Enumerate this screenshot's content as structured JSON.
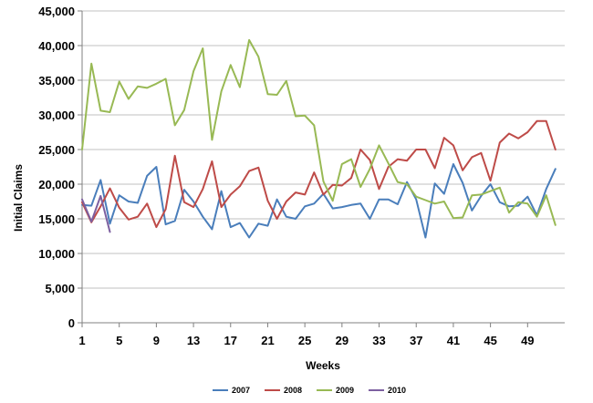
{
  "chart_data": {
    "type": "line",
    "title": "",
    "xlabel": "Weeks",
    "ylabel": "Initial Claims",
    "xlim": [
      1,
      53
    ],
    "ylim": [
      0,
      45000
    ],
    "x_ticks": [
      1,
      5,
      9,
      13,
      17,
      21,
      25,
      29,
      33,
      37,
      41,
      45,
      49
    ],
    "x_tick_labels": [
      "1",
      "5",
      "9",
      "13",
      "17",
      "21",
      "25",
      "29",
      "33",
      "37",
      "41",
      "45",
      "49"
    ],
    "y_ticks": [
      0,
      5000,
      10000,
      15000,
      20000,
      25000,
      30000,
      35000,
      40000,
      45000
    ],
    "y_tick_labels": [
      "0",
      "5,000",
      "10,000",
      "15,000",
      "20,000",
      "25,000",
      "30,000",
      "35,000",
      "40,000",
      "45,000"
    ],
    "grid": "horizontal",
    "legend_position": "bottom",
    "colors": {
      "2007": "#4a7ebb",
      "2008": "#be4b48",
      "2009": "#98b954",
      "2010": "#7d60a0",
      "grid": "#c0c0c0",
      "axis": "#808080"
    },
    "series": [
      {
        "name": "2007",
        "x": [
          1,
          2,
          3,
          4,
          5,
          6,
          7,
          8,
          9,
          10,
          11,
          12,
          13,
          14,
          15,
          16,
          17,
          18,
          19,
          20,
          21,
          22,
          23,
          24,
          25,
          26,
          27,
          28,
          29,
          30,
          31,
          32,
          33,
          34,
          35,
          36,
          37,
          38,
          39,
          40,
          41,
          42,
          43,
          44,
          45,
          46,
          47,
          48,
          49,
          50,
          51,
          52
        ],
        "values": [
          17000,
          16900,
          20600,
          14300,
          18400,
          17500,
          17300,
          21200,
          22500,
          14200,
          14700,
          19200,
          17500,
          15300,
          13500,
          19000,
          13800,
          14400,
          12300,
          14300,
          14000,
          17800,
          15300,
          15000,
          16800,
          17200,
          18600,
          16500,
          16700,
          17000,
          17200,
          15000,
          17800,
          17800,
          17100,
          20300,
          17800,
          12300,
          20100,
          18600,
          22900,
          20200,
          16200,
          18300,
          20000,
          17400,
          16800,
          16900,
          18200,
          15500,
          19300,
          22200
        ]
      },
      {
        "name": "2008",
        "x": [
          1,
          2,
          3,
          4,
          5,
          6,
          7,
          8,
          9,
          10,
          11,
          12,
          13,
          14,
          15,
          16,
          17,
          18,
          19,
          20,
          21,
          22,
          23,
          24,
          25,
          26,
          27,
          28,
          29,
          30,
          31,
          32,
          33,
          34,
          35,
          36,
          37,
          38,
          39,
          40,
          41,
          42,
          43,
          44,
          45,
          46,
          47,
          48,
          49,
          50,
          51,
          52
        ],
        "values": [
          17400,
          14500,
          16800,
          19400,
          16600,
          14900,
          15300,
          17200,
          13800,
          16400,
          24100,
          17400,
          16700,
          19300,
          23300,
          16700,
          18500,
          19700,
          21900,
          22400,
          17600,
          15000,
          17500,
          18800,
          18500,
          21700,
          18500,
          19900,
          19800,
          20900,
          25000,
          23500,
          19300,
          22500,
          23600,
          23400,
          25000,
          25000,
          22300,
          26700,
          25600,
          22000,
          23900,
          24500,
          20500,
          26000,
          27300,
          26600,
          27500,
          29100,
          29100,
          25000
        ]
      },
      {
        "name": "2009",
        "x": [
          1,
          2,
          3,
          4,
          5,
          6,
          7,
          8,
          9,
          10,
          11,
          12,
          13,
          14,
          15,
          16,
          17,
          18,
          19,
          20,
          21,
          22,
          23,
          24,
          25,
          26,
          27,
          28,
          29,
          30,
          31,
          32,
          33,
          34,
          35,
          36,
          37,
          38,
          39,
          40,
          41,
          42,
          43,
          44,
          45,
          46,
          47,
          48,
          49,
          50,
          51,
          52
        ],
        "values": [
          25000,
          37400,
          30600,
          30400,
          34800,
          32300,
          34100,
          33900,
          34500,
          35200,
          28500,
          30700,
          36300,
          39600,
          26400,
          33400,
          37200,
          34000,
          40800,
          38400,
          33000,
          32900,
          34900,
          29800,
          29900,
          28500,
          20400,
          17600,
          22900,
          23600,
          19600,
          22200,
          25600,
          23000,
          20300,
          20000,
          18200,
          17700,
          17200,
          17500,
          15100,
          15200,
          18400,
          18500,
          19000,
          19500,
          15900,
          17400,
          17200,
          15300,
          18400,
          14100
        ]
      },
      {
        "name": "2010",
        "x": [
          1,
          2,
          3,
          4
        ],
        "values": [
          17800,
          14600,
          18300,
          13100
        ]
      }
    ]
  }
}
